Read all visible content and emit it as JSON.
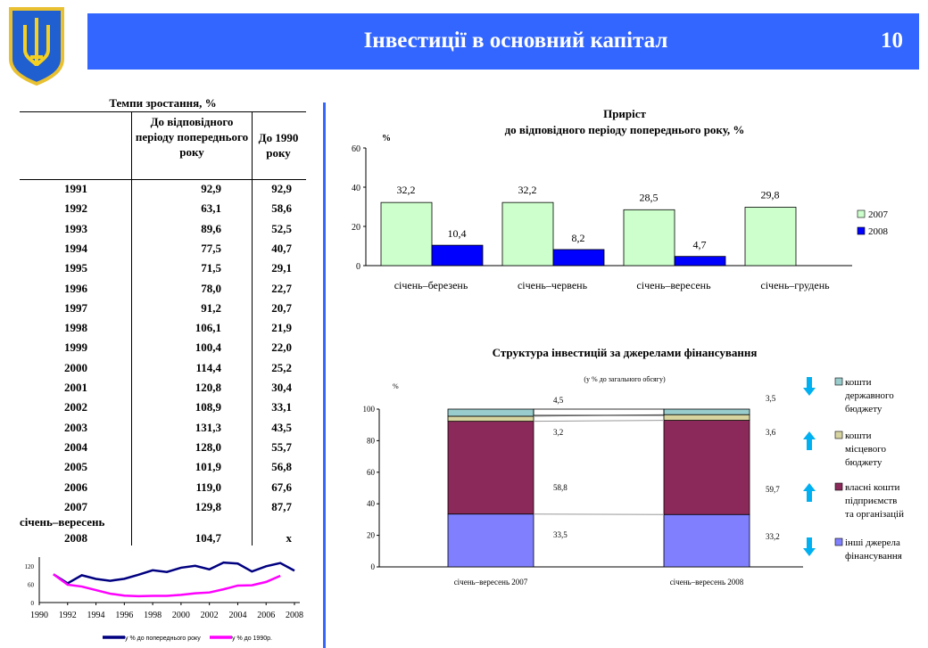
{
  "header": {
    "title": "Інвестиції в основний капітал",
    "page": "10",
    "color": "#3366ff"
  },
  "table": {
    "title": "Темпи зростання, %",
    "col1": "До відповідного періоду попереднього року",
    "col2": "До 1990 року",
    "rows": [
      [
        "1991",
        "92,9",
        "92,9"
      ],
      [
        "1992",
        "63,1",
        "58,6"
      ],
      [
        "1993",
        "89,6",
        "52,5"
      ],
      [
        "1994",
        "77,5",
        "40,7"
      ],
      [
        "1995",
        "71,5",
        "29,1"
      ],
      [
        "1996",
        "78,0",
        "22,7"
      ],
      [
        "1997",
        "91,2",
        "20,7"
      ],
      [
        "1998",
        "106,1",
        "21,9"
      ],
      [
        "1999",
        "100,4",
        "22,0"
      ],
      [
        "2000",
        "114,4",
        "25,2"
      ],
      [
        "2001",
        "120,8",
        "30,4"
      ],
      [
        "2002",
        "108,9",
        "33,1"
      ],
      [
        "2003",
        "131,3",
        "43,5"
      ],
      [
        "2004",
        "128,0",
        "55,7"
      ],
      [
        "2005",
        "101,9",
        "56,8"
      ],
      [
        "2006",
        "119,0",
        "67,6"
      ],
      [
        "2007",
        "129,8",
        "87,7"
      ]
    ],
    "last_label": "січень–вересень",
    "last_year": "2008",
    "last_v1": "104,7",
    "last_v2": "x"
  },
  "chart_data": [
    {
      "type": "line",
      "title": "",
      "yticks": [
        "0",
        "60",
        "120"
      ],
      "ylim": [
        0,
        160
      ],
      "xlim": [
        1990,
        2008
      ],
      "xticks": [
        "1990",
        "1992",
        "1994",
        "1996",
        "1998",
        "2000",
        "2002",
        "2004",
        "2006",
        "2008"
      ],
      "series": [
        {
          "name": "у % до попереднього року",
          "color": "#000080",
          "x": [
            1991,
            1992,
            1993,
            1994,
            1995,
            1996,
            1997,
            1998,
            1999,
            2000,
            2001,
            2002,
            2003,
            2004,
            2005,
            2006,
            2007,
            2008
          ],
          "values": [
            92.9,
            63.1,
            89.6,
            77.5,
            71.5,
            78.0,
            91.2,
            106.1,
            100.4,
            114.4,
            120.8,
            108.9,
            131.3,
            128.0,
            101.9,
            119.0,
            129.8,
            104.7
          ]
        },
        {
          "name": "у % до 1990р.",
          "color": "#ff00ff",
          "x": [
            1991,
            1992,
            1993,
            1994,
            1995,
            1996,
            1997,
            1998,
            1999,
            2000,
            2001,
            2002,
            2003,
            2004,
            2005,
            2006,
            2007
          ],
          "values": [
            92.9,
            58.6,
            52.5,
            40.7,
            29.1,
            22.7,
            20.7,
            21.9,
            22.0,
            25.2,
            30.4,
            33.1,
            43.5,
            55.7,
            56.8,
            67.6,
            87.7
          ]
        }
      ]
    },
    {
      "type": "bar",
      "title": "Приріст",
      "subtitle": "до відповідного періоду попереднього року, %",
      "ylabel": "%",
      "ylim": [
        0,
        60
      ],
      "yticks": [
        "0",
        "20",
        "40",
        "60"
      ],
      "categories": [
        "січень–березень",
        "січень–червень",
        "січень–вересень",
        "січень–грудень"
      ],
      "series": [
        {
          "name": "2007",
          "color": "#ccffcc",
          "values": [
            32.2,
            32.2,
            28.5,
            29.8
          ],
          "labels": [
            "32,2",
            "32,2",
            "28,5",
            "29,8"
          ]
        },
        {
          "name": "2008",
          "color": "#0000ff",
          "values": [
            10.4,
            8.2,
            4.7,
            null
          ],
          "labels": [
            "10,4",
            "8,2",
            "4,7",
            ""
          ]
        }
      ]
    },
    {
      "type": "bar",
      "stacked": true,
      "title": "Структура інвестицій за джерелами фінансування",
      "subtitle": "(у % до загального обсягу)",
      "ylabel": "%",
      "ylim": [
        0,
        100
      ],
      "yticks": [
        "0",
        "20",
        "40",
        "60",
        "80",
        "100"
      ],
      "categories": [
        "січень–вересень 2007",
        "січень–вересень 2008"
      ],
      "series": [
        {
          "name": "інші джерела фінансування",
          "color": "#8080ff",
          "values": [
            33.5,
            33.2
          ],
          "labels": [
            "33,5",
            "33,2"
          ],
          "trend": "down"
        },
        {
          "name": "власні кошти підприємств та організацій",
          "color": "#8b2a5a",
          "values": [
            58.8,
            59.7
          ],
          "labels": [
            "58,8",
            "59,7"
          ],
          "trend": "up"
        },
        {
          "name": "кошти місцевого бюджету",
          "color": "#d8d4a0",
          "values": [
            3.2,
            3.6
          ],
          "labels": [
            "3,2",
            "3,6"
          ],
          "trend": "up"
        },
        {
          "name": "кошти державного бюджету",
          "color": "#99cccc",
          "values": [
            4.5,
            3.5
          ],
          "labels": [
            "4,5",
            "3,5"
          ],
          "trend": "down"
        }
      ],
      "arrow_color": "#00b0f0"
    }
  ]
}
